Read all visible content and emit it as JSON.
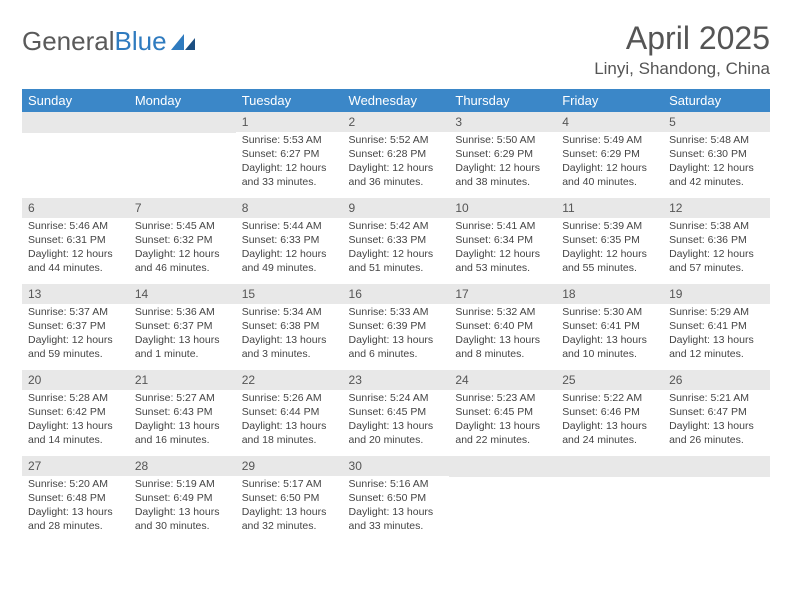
{
  "brand": {
    "part1": "General",
    "part2": "Blue"
  },
  "title": "April 2025",
  "location": "Linyi, Shandong, China",
  "colors": {
    "header_bg": "#3b87c8",
    "header_fg": "#ffffff",
    "daynum_bg": "#e8e8e8",
    "text": "#444444",
    "title": "#555555",
    "brand_gray": "#5a5a5a",
    "brand_blue": "#2f7bbf",
    "page_bg": "#ffffff"
  },
  "weekdays": [
    "Sunday",
    "Monday",
    "Tuesday",
    "Wednesday",
    "Thursday",
    "Friday",
    "Saturday"
  ],
  "weeks": [
    [
      null,
      null,
      {
        "n": "1",
        "sr": "Sunrise: 5:53 AM",
        "ss": "Sunset: 6:27 PM",
        "dl": "Daylight: 12 hours and 33 minutes."
      },
      {
        "n": "2",
        "sr": "Sunrise: 5:52 AM",
        "ss": "Sunset: 6:28 PM",
        "dl": "Daylight: 12 hours and 36 minutes."
      },
      {
        "n": "3",
        "sr": "Sunrise: 5:50 AM",
        "ss": "Sunset: 6:29 PM",
        "dl": "Daylight: 12 hours and 38 minutes."
      },
      {
        "n": "4",
        "sr": "Sunrise: 5:49 AM",
        "ss": "Sunset: 6:29 PM",
        "dl": "Daylight: 12 hours and 40 minutes."
      },
      {
        "n": "5",
        "sr": "Sunrise: 5:48 AM",
        "ss": "Sunset: 6:30 PM",
        "dl": "Daylight: 12 hours and 42 minutes."
      }
    ],
    [
      {
        "n": "6",
        "sr": "Sunrise: 5:46 AM",
        "ss": "Sunset: 6:31 PM",
        "dl": "Daylight: 12 hours and 44 minutes."
      },
      {
        "n": "7",
        "sr": "Sunrise: 5:45 AM",
        "ss": "Sunset: 6:32 PM",
        "dl": "Daylight: 12 hours and 46 minutes."
      },
      {
        "n": "8",
        "sr": "Sunrise: 5:44 AM",
        "ss": "Sunset: 6:33 PM",
        "dl": "Daylight: 12 hours and 49 minutes."
      },
      {
        "n": "9",
        "sr": "Sunrise: 5:42 AM",
        "ss": "Sunset: 6:33 PM",
        "dl": "Daylight: 12 hours and 51 minutes."
      },
      {
        "n": "10",
        "sr": "Sunrise: 5:41 AM",
        "ss": "Sunset: 6:34 PM",
        "dl": "Daylight: 12 hours and 53 minutes."
      },
      {
        "n": "11",
        "sr": "Sunrise: 5:39 AM",
        "ss": "Sunset: 6:35 PM",
        "dl": "Daylight: 12 hours and 55 minutes."
      },
      {
        "n": "12",
        "sr": "Sunrise: 5:38 AM",
        "ss": "Sunset: 6:36 PM",
        "dl": "Daylight: 12 hours and 57 minutes."
      }
    ],
    [
      {
        "n": "13",
        "sr": "Sunrise: 5:37 AM",
        "ss": "Sunset: 6:37 PM",
        "dl": "Daylight: 12 hours and 59 minutes."
      },
      {
        "n": "14",
        "sr": "Sunrise: 5:36 AM",
        "ss": "Sunset: 6:37 PM",
        "dl": "Daylight: 13 hours and 1 minute."
      },
      {
        "n": "15",
        "sr": "Sunrise: 5:34 AM",
        "ss": "Sunset: 6:38 PM",
        "dl": "Daylight: 13 hours and 3 minutes."
      },
      {
        "n": "16",
        "sr": "Sunrise: 5:33 AM",
        "ss": "Sunset: 6:39 PM",
        "dl": "Daylight: 13 hours and 6 minutes."
      },
      {
        "n": "17",
        "sr": "Sunrise: 5:32 AM",
        "ss": "Sunset: 6:40 PM",
        "dl": "Daylight: 13 hours and 8 minutes."
      },
      {
        "n": "18",
        "sr": "Sunrise: 5:30 AM",
        "ss": "Sunset: 6:41 PM",
        "dl": "Daylight: 13 hours and 10 minutes."
      },
      {
        "n": "19",
        "sr": "Sunrise: 5:29 AM",
        "ss": "Sunset: 6:41 PM",
        "dl": "Daylight: 13 hours and 12 minutes."
      }
    ],
    [
      {
        "n": "20",
        "sr": "Sunrise: 5:28 AM",
        "ss": "Sunset: 6:42 PM",
        "dl": "Daylight: 13 hours and 14 minutes."
      },
      {
        "n": "21",
        "sr": "Sunrise: 5:27 AM",
        "ss": "Sunset: 6:43 PM",
        "dl": "Daylight: 13 hours and 16 minutes."
      },
      {
        "n": "22",
        "sr": "Sunrise: 5:26 AM",
        "ss": "Sunset: 6:44 PM",
        "dl": "Daylight: 13 hours and 18 minutes."
      },
      {
        "n": "23",
        "sr": "Sunrise: 5:24 AM",
        "ss": "Sunset: 6:45 PM",
        "dl": "Daylight: 13 hours and 20 minutes."
      },
      {
        "n": "24",
        "sr": "Sunrise: 5:23 AM",
        "ss": "Sunset: 6:45 PM",
        "dl": "Daylight: 13 hours and 22 minutes."
      },
      {
        "n": "25",
        "sr": "Sunrise: 5:22 AM",
        "ss": "Sunset: 6:46 PM",
        "dl": "Daylight: 13 hours and 24 minutes."
      },
      {
        "n": "26",
        "sr": "Sunrise: 5:21 AM",
        "ss": "Sunset: 6:47 PM",
        "dl": "Daylight: 13 hours and 26 minutes."
      }
    ],
    [
      {
        "n": "27",
        "sr": "Sunrise: 5:20 AM",
        "ss": "Sunset: 6:48 PM",
        "dl": "Daylight: 13 hours and 28 minutes."
      },
      {
        "n": "28",
        "sr": "Sunrise: 5:19 AM",
        "ss": "Sunset: 6:49 PM",
        "dl": "Daylight: 13 hours and 30 minutes."
      },
      {
        "n": "29",
        "sr": "Sunrise: 5:17 AM",
        "ss": "Sunset: 6:50 PM",
        "dl": "Daylight: 13 hours and 32 minutes."
      },
      {
        "n": "30",
        "sr": "Sunrise: 5:16 AM",
        "ss": "Sunset: 6:50 PM",
        "dl": "Daylight: 13 hours and 33 minutes."
      },
      null,
      null,
      null
    ]
  ]
}
